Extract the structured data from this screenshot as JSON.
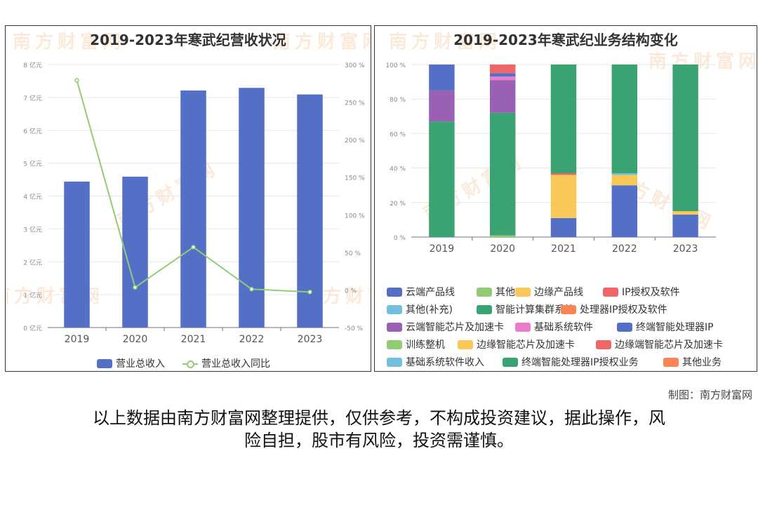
{
  "watermark_text": "南方财富网",
  "credit": "制图：南方财富网",
  "disclaimer_line1": "以上数据由南方财富网整理提供，仅供参考，不构成投资建议，据此操作，风",
  "disclaimer_line2": "险自担，股市有风险，投资需谨慎。",
  "chart_data": [
    {
      "type": "bar",
      "title": "2019-2023年寒武纪营收状况",
      "categories": [
        "2019",
        "2020",
        "2021",
        "2022",
        "2023"
      ],
      "y_left_ticks": [
        "0 亿元",
        "1 亿元",
        "2 亿元",
        "3 亿元",
        "4 亿元",
        "5 亿元",
        "6 亿元",
        "7 亿元",
        "8 亿元"
      ],
      "y_right_ticks": [
        "-50 %",
        "0 %",
        "50 %",
        "100 %",
        "150 %",
        "200 %",
        "250 %",
        "300 %"
      ],
      "ylim_left": [
        0,
        8
      ],
      "ylim_right": [
        -50,
        300
      ],
      "series": [
        {
          "name": "营业总收入",
          "type": "bar",
          "axis": "left",
          "color": "#5470c6",
          "values": [
            4.44,
            4.59,
            7.21,
            7.29,
            7.09
          ]
        },
        {
          "name": "营业总收入同比",
          "type": "line",
          "axis": "right",
          "color": "#91cc75",
          "values": [
            279,
            3.4,
            57,
            1.1,
            -2.7
          ]
        }
      ],
      "grid": true,
      "legend_position": "bottom"
    },
    {
      "type": "bar",
      "stacked": true,
      "title": "2019-2023年寒武纪业务结构变化",
      "categories": [
        "2019",
        "2020",
        "2021",
        "2022",
        "2023"
      ],
      "y_ticks": [
        "0 %",
        "20 %",
        "40 %",
        "60 %",
        "80 %",
        "100 %"
      ],
      "ylim": [
        0,
        100
      ],
      "series": [
        {
          "name": "云端产品线",
          "color": "#5470c6",
          "values": [
            0,
            0,
            0,
            0,
            0
          ]
        },
        {
          "name": "其他",
          "color": "#91cc75",
          "values": [
            0,
            1,
            0,
            0,
            0
          ]
        },
        {
          "name": "边缘产品线",
          "color": "#fac858",
          "values": [
            0,
            0,
            0,
            0,
            0
          ]
        },
        {
          "name": "IP授权及软件",
          "color": "#ee6666",
          "values": [
            0,
            0,
            0,
            0,
            0
          ]
        },
        {
          "name": "其他(补充)",
          "color": "#73c0de",
          "values": [
            0,
            0,
            0,
            0,
            0
          ]
        },
        {
          "name": "智能计算集群系统",
          "color": "#3ba272",
          "values": [
            67,
            71,
            0,
            0,
            0
          ]
        },
        {
          "name": "处理器IP授权及软件",
          "color": "#fc8452",
          "values": [
            0,
            0,
            0,
            0,
            0
          ]
        },
        {
          "name": "云端智能芯片及加速卡",
          "color": "#9a60b4",
          "values": [
            18,
            19,
            0,
            0,
            0
          ]
        },
        {
          "name": "基础系统软件",
          "color": "#ea7ccc",
          "values": [
            0,
            2,
            0,
            0,
            0
          ]
        },
        {
          "name": "终端智能处理器IP",
          "color": "#5470c6",
          "values": [
            15,
            2,
            11,
            30,
            13
          ]
        },
        {
          "name": "训练整机",
          "color": "#91cc75",
          "values": [
            0,
            0,
            0,
            0,
            0
          ]
        },
        {
          "name": "边缘智能芯片及加速卡",
          "color": "#fac858",
          "values": [
            0,
            0,
            25,
            6,
            2
          ]
        },
        {
          "name": "边缘端智能芯片及加速卡",
          "color": "#ee6666",
          "values": [
            0,
            5,
            1,
            0,
            0
          ]
        },
        {
          "name": "基础系统软件收入",
          "color": "#73c0de",
          "values": [
            0,
            0,
            0,
            1,
            0
          ]
        },
        {
          "name": "终端智能处理器IP授权业务",
          "color": "#3ba272",
          "values": [
            0,
            0,
            63,
            63,
            85
          ]
        },
        {
          "name": "其他业务",
          "color": "#fc8452",
          "values": [
            0,
            0,
            0,
            0,
            0
          ]
        }
      ],
      "grid": true,
      "legend_position": "bottom"
    }
  ]
}
